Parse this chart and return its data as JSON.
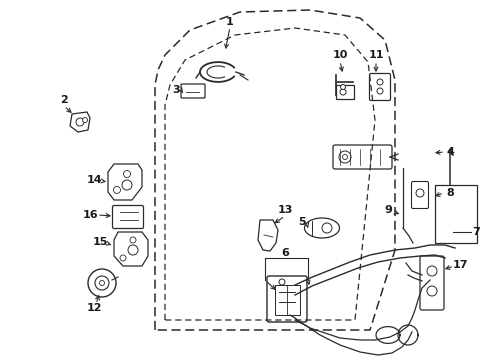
{
  "background_color": "#ffffff",
  "line_color": "#2a2a2a",
  "text_color": "#1a1a1a",
  "fig_width": 4.89,
  "fig_height": 3.6,
  "dpi": 100
}
